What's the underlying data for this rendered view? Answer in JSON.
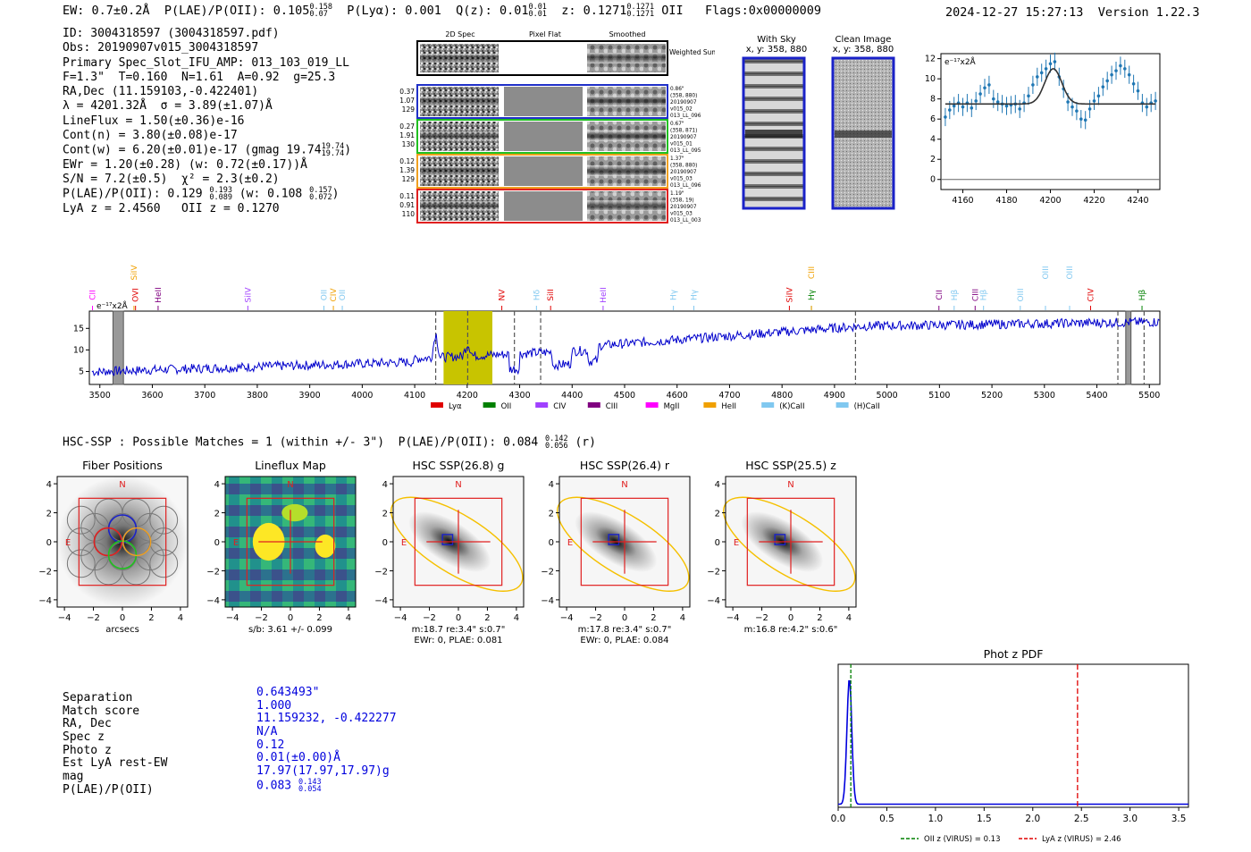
{
  "header": {
    "ew": "EW: 0.7±0.2Å",
    "plae_label": "P(LAE)/P(OII): 0.105",
    "plae_hi": "0.158",
    "plae_lo": "0.07",
    "plya": "P(Lyα): 0.001",
    "qz_label": "Q(z): 0.01",
    "qz_hi": "0.01",
    "qz_lo": "0.01",
    "z_label": "z: 0.1271",
    "z_hi": "0.1271",
    "z_lo": "0.1271",
    "z_line": "OII",
    "flags": "Flags:0x00000009",
    "datetime": "2024-12-27 15:27:13",
    "version": "Version 1.22.3"
  },
  "info": {
    "id": "ID: 3004318597 (3004318597.pdf)",
    "obs": "Obs: 20190907v015_3004318597",
    "primary": "Primary Spec_Slot_IFU_AMP: 013_103_019_LL",
    "params": "F=1.3\"  T=0.160  N=1.61  A=0.92  g=25.3",
    "radec": "RA,Dec (11.159103,-0.422401)",
    "lambda": "λ = 4201.32Å  σ = 3.89(±1.07)Å",
    "lineflux": "LineFlux = 1.50(±0.36)e-16",
    "contn": "Cont(n) = 3.80(±0.08)e-17",
    "contw": "Cont(w) = 6.20(±0.01)e-17 (gmag 19.74",
    "contw_hi": "19.74",
    "contw_lo": "19.74",
    "ewr": "EWr = 1.20(±0.28) (w: 0.72(±0.17))Å",
    "sn": "S/N = 7.2(±0.5)  χ² = 2.3(±0.2)",
    "plae": "P(LAE)/P(OII): 0.129",
    "plae_hi": "0.193",
    "plae_lo": "0.089",
    "plae_w": "(w: 0.108",
    "plae_w_hi": "0.157",
    "plae_w_lo": "0.072",
    "lyaz": "LyA z = 2.4560   OII z = 0.1270"
  },
  "cutouts": {
    "headers": [
      "2D Spec",
      "Pixel Flat",
      "Smoothed"
    ],
    "weighted_sum": "Weighted Sum",
    "rows": [
      {
        "left": [
          "0.37",
          "1.07",
          "129"
        ],
        "right": [
          "0.86\"",
          "(358, 880)",
          "20190907",
          "v015_02",
          "013_LL_096"
        ],
        "color": "#2030c8"
      },
      {
        "left": [
          "0.27",
          "1.91",
          "130"
        ],
        "right": [
          "0.67\"",
          "(358, 871)",
          "20190907",
          "v015_01",
          "013_LL_095"
        ],
        "color": "#20c020"
      },
      {
        "left": [
          "0.12",
          "1.39",
          "129"
        ],
        "right": [
          "1.37\"",
          "(358, 880)",
          "20190907",
          "v015_03",
          "013_LL_096"
        ],
        "color": "#f0a020"
      },
      {
        "left": [
          "0.11",
          "0.91",
          "110"
        ],
        "right": [
          "1.19\"",
          "(358, 19)",
          "20190907",
          "v015_03",
          "013_LL_003"
        ],
        "color": "#e02020"
      }
    ]
  },
  "sky": {
    "with_sky": "With Sky",
    "with_sky_xy": "x, y: 358, 880",
    "clean": "Clean Image",
    "clean_xy": "x, y: 358, 880"
  },
  "line_fit_chart": {
    "type": "line",
    "ylabel": "e⁻¹⁷x2Å",
    "xlim": [
      4150,
      4250
    ],
    "ylim": [
      -1,
      12.5
    ],
    "xticks": [
      "4160",
      "4180",
      "4200",
      "4220",
      "4240"
    ],
    "yticks": [
      "0",
      "2",
      "4",
      "6",
      "8",
      "10",
      "12"
    ],
    "points_x": [
      4152,
      4154,
      4156,
      4158,
      4160,
      4162,
      4164,
      4166,
      4168,
      4170,
      4172,
      4174,
      4176,
      4178,
      4180,
      4182,
      4184,
      4186,
      4188,
      4190,
      4192,
      4194,
      4196,
      4198,
      4200,
      4202,
      4204,
      4206,
      4208,
      4210,
      4212,
      4214,
      4216,
      4218,
      4220,
      4222,
      4224,
      4226,
      4228,
      4230,
      4232,
      4234,
      4236,
      4238,
      4240,
      4242,
      4244,
      4246,
      4248
    ],
    "points_y": [
      6.2,
      6.9,
      7.3,
      7.6,
      7.2,
      7.6,
      7.1,
      7.8,
      8.5,
      9.1,
      9.4,
      8.0,
      7.7,
      7.5,
      7.3,
      7.4,
      7.5,
      7.0,
      7.6,
      8.3,
      9.4,
      10.2,
      10.6,
      11.0,
      11.5,
      11.7,
      10.2,
      9.0,
      7.7,
      7.2,
      6.8,
      6.0,
      5.9,
      7.0,
      7.8,
      8.3,
      9.2,
      9.8,
      10.4,
      10.8,
      11.3,
      11.0,
      10.4,
      9.5,
      8.8,
      7.6,
      7.2,
      7.6,
      7.8
    ],
    "model_continuum": 7.5,
    "model_peak": 11.0,
    "model_center": 4201.32,
    "model_sigma": 3.89
  },
  "spectrum_chart": {
    "type": "line",
    "ylabel": "e⁻¹⁷x2Å",
    "xlim": [
      3480,
      5520
    ],
    "ylim": [
      2,
      19
    ],
    "xticks": [
      "3500",
      "3600",
      "3700",
      "3800",
      "3900",
      "4000",
      "4100",
      "4200",
      "4300",
      "4400",
      "4500",
      "4600",
      "4700",
      "4800",
      "4900",
      "5000",
      "5100",
      "5200",
      "5300",
      "5400",
      "5500"
    ],
    "yticks": [
      "5",
      "10",
      "15"
    ],
    "highlight_range": [
      4155,
      4248
    ],
    "dashed_lines": [
      4140,
      4201,
      4290,
      4340,
      4940,
      5440,
      5490
    ],
    "masked_ranges": [
      [
        3525,
        3545
      ],
      [
        5455,
        5465
      ]
    ],
    "line_labels": [
      {
        "name": "CII",
        "w": 3486,
        "color": "#ff00ff"
      },
      {
        "name": "OVI",
        "w": 3568,
        "color": "#e00000"
      },
      {
        "name": "SiIV",
        "w": 3565,
        "color": "#f0a000"
      },
      {
        "name": "HeII",
        "w": 3611,
        "color": "#800080"
      },
      {
        "name": "SiIV",
        "w": 3782,
        "color": "#a040ff"
      },
      {
        "name": "OII",
        "w": 3927,
        "color": "#80c8f0"
      },
      {
        "name": "CIV",
        "w": 3945,
        "color": "#f0a000"
      },
      {
        "name": "OII",
        "w": 3962,
        "color": "#80c8f0"
      },
      {
        "name": "NV",
        "w": 4266,
        "color": "#e00000"
      },
      {
        "name": "Hδ",
        "w": 4332,
        "color": "#80c8f0"
      },
      {
        "name": "SiII",
        "w": 4359,
        "color": "#e00000"
      },
      {
        "name": "HeII",
        "w": 4459,
        "color": "#a040ff"
      },
      {
        "name": "Hγ",
        "w": 4593,
        "color": "#80c8f0"
      },
      {
        "name": "Hγ",
        "w": 4632,
        "color": "#80c8f0"
      },
      {
        "name": "SiIV",
        "w": 4814,
        "color": "#e00000"
      },
      {
        "name": "Hγ",
        "w": 4856,
        "color": "#008000"
      },
      {
        "name": "CIII",
        "w": 4856,
        "color": "#f0a000"
      },
      {
        "name": "CII",
        "w": 5099,
        "color": "#800080"
      },
      {
        "name": "Hβ",
        "w": 5128,
        "color": "#80c8f0"
      },
      {
        "name": "CIII",
        "w": 5168,
        "color": "#800080"
      },
      {
        "name": "Hβ",
        "w": 5184,
        "color": "#80c8f0"
      },
      {
        "name": "OIII",
        "w": 5254,
        "color": "#80c8f0"
      },
      {
        "name": "OIII",
        "w": 5302,
        "color": "#80c8f0"
      },
      {
        "name": "OIII",
        "w": 5348,
        "color": "#80c8f0"
      },
      {
        "name": "CIV",
        "w": 5388,
        "color": "#e00000"
      },
      {
        "name": "Hβ",
        "w": 5486,
        "color": "#008000"
      }
    ],
    "legend": [
      {
        "name": "Lyα",
        "color": "#e00000"
      },
      {
        "name": "OII",
        "color": "#008000"
      },
      {
        "name": "CIV",
        "color": "#a040ff"
      },
      {
        "name": "CIII",
        "color": "#800080"
      },
      {
        "name": "MgII",
        "color": "#ff00ff"
      },
      {
        "name": "HeII",
        "color": "#f0a000"
      },
      {
        "name": "(K)CaII",
        "color": "#80c8f0"
      },
      {
        "name": "(H)CaII",
        "color": "#80c8f0"
      }
    ]
  },
  "hsc": {
    "title": "HSC-SSP : Possible Matches = 1 (within +/- 3\")  P(LAE)/P(OII): 0.084",
    "title_hi": "0.142",
    "title_lo": "0.056",
    "title_band": "(r)",
    "panels": [
      {
        "title": "Fiber Positions",
        "cap1": "arcsecs",
        "cap2": ""
      },
      {
        "title": "Lineflux Map",
        "cap1": "s/b: 3.61 +/- 0.099",
        "cap2": ""
      },
      {
        "title": "HSC SSP(26.8) g",
        "cap1": "m:18.7  re:3.4\"  s:0.7\"",
        "cap2": "EWr: 0, PLAE: 0.081"
      },
      {
        "title": "HSC SSP(26.4) r",
        "cap1": "m:17.8  re:3.4\"  s:0.7\"",
        "cap2": "EWr: 0, PLAE: 0.084"
      },
      {
        "title": "HSC SSP(25.5) z",
        "cap1": "m:16.8  re:4.2\"  s:0.6\"",
        "cap2": ""
      }
    ],
    "axis_ticks": [
      "−4",
      "−2",
      "0",
      "2",
      "4"
    ],
    "n_label": "N",
    "e_label": "E"
  },
  "match": {
    "labels": [
      "Separation",
      "Match score",
      "RA, Dec",
      "Spec z",
      "Photo z",
      "Est LyA rest-EW",
      "mag",
      "P(LAE)/P(OII)"
    ],
    "values": [
      "0.643493\"",
      "1.000",
      "11.159232, -0.422277",
      "N/A",
      "0.12",
      "0.01(±0.00)Å",
      "17.97(17.97,17.97)g",
      "0.083"
    ],
    "plae_hi": "0.143",
    "plae_lo": "0.054"
  },
  "photz_chart": {
    "type": "line",
    "title": "Phot z PDF",
    "xlim": [
      0,
      3.6
    ],
    "xticks": [
      "0.0",
      "0.5",
      "1.0",
      "1.5",
      "2.0",
      "2.5",
      "3.0",
      "3.5"
    ],
    "oii_z": 0.13,
    "lya_z": 2.46,
    "legend_oii": "OII z (VIRUS) = 0.13",
    "legend_lya": "LyA z (VIRUS) = 2.46"
  }
}
